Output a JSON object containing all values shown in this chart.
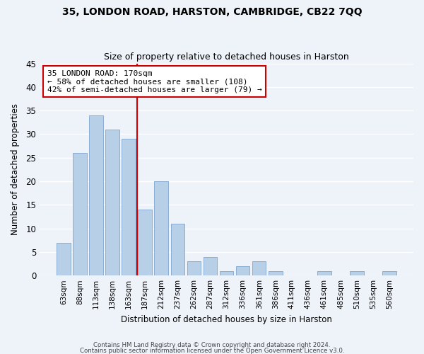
{
  "title1": "35, LONDON ROAD, HARSTON, CAMBRIDGE, CB22 7QQ",
  "title2": "Size of property relative to detached houses in Harston",
  "xlabel": "Distribution of detached houses by size in Harston",
  "ylabel": "Number of detached properties",
  "bins": [
    "63sqm",
    "88sqm",
    "113sqm",
    "138sqm",
    "163sqm",
    "187sqm",
    "212sqm",
    "237sqm",
    "262sqm",
    "287sqm",
    "312sqm",
    "336sqm",
    "361sqm",
    "386sqm",
    "411sqm",
    "436sqm",
    "461sqm",
    "485sqm",
    "510sqm",
    "535sqm",
    "560sqm"
  ],
  "values": [
    7,
    26,
    34,
    31,
    29,
    14,
    20,
    11,
    3,
    4,
    1,
    2,
    3,
    1,
    0,
    0,
    1,
    0,
    1,
    0,
    1
  ],
  "bar_color": "#b8cfe8",
  "bar_edge_color": "#8aadd4",
  "vline_x_index": 4.5,
  "vline_color": "#cc0000",
  "annotation_line1": "35 LONDON ROAD: 170sqm",
  "annotation_line2": "← 58% of detached houses are smaller (108)",
  "annotation_line3": "42% of semi-detached houses are larger (79) →",
  "annotation_box_color": "white",
  "annotation_box_edge": "#cc0000",
  "ylim": [
    0,
    45
  ],
  "yticks": [
    0,
    5,
    10,
    15,
    20,
    25,
    30,
    35,
    40,
    45
  ],
  "footer1": "Contains HM Land Registry data © Crown copyright and database right 2024.",
  "footer2": "Contains public sector information licensed under the Open Government Licence v3.0.",
  "bg_color": "#eef2f9",
  "plot_bg_color": "#eef2f9"
}
